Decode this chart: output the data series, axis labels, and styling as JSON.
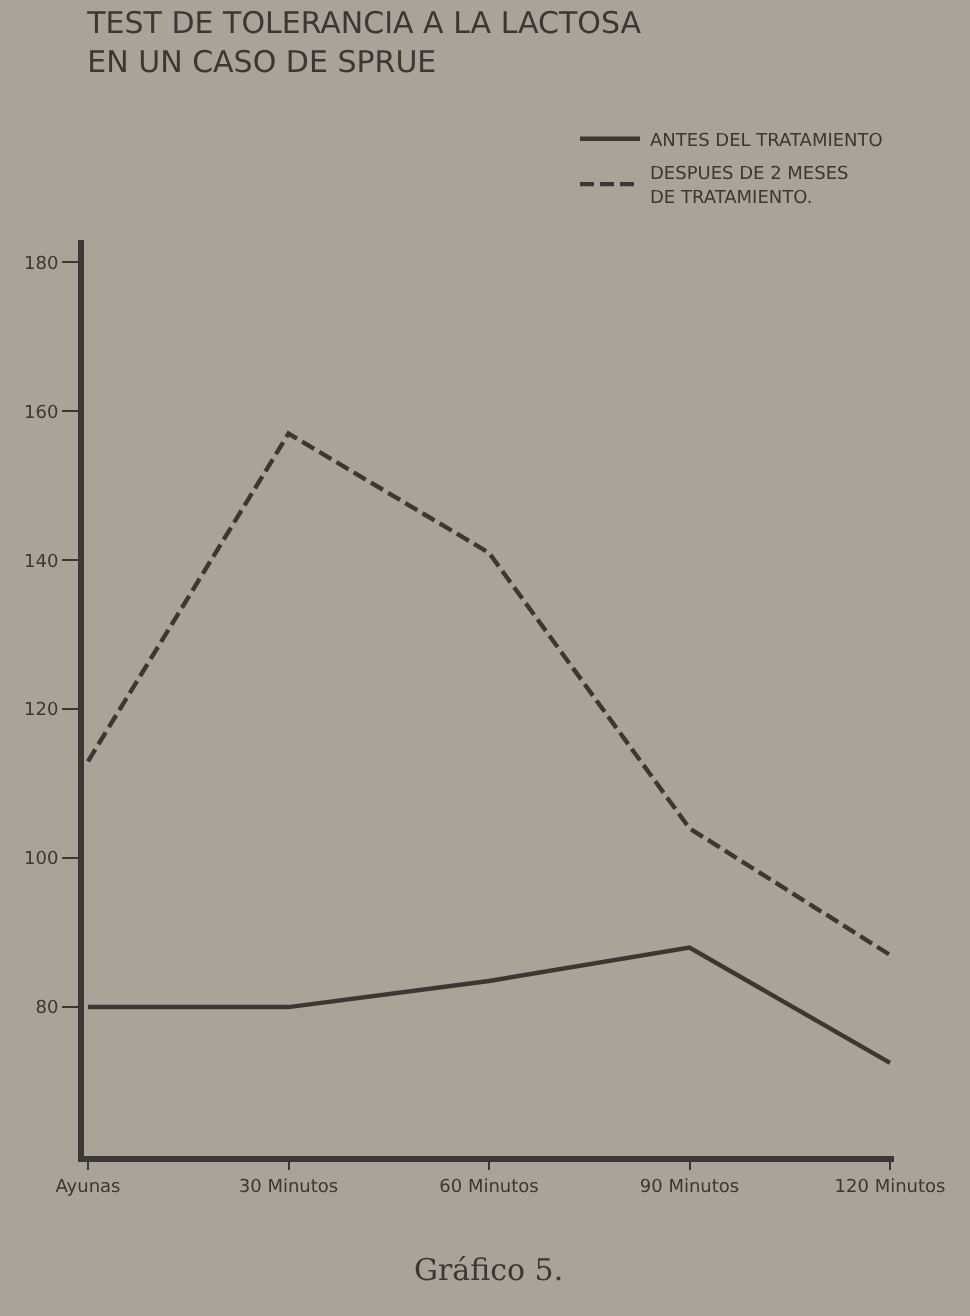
{
  "chart_data": {
    "type": "line",
    "title": "TEST DE TOLERANCIA A LA LACTOSA\nEN UN CASO DE SPRUE",
    "categories": [
      "Ayunas",
      "30 Minutos",
      "60 Minutos",
      "90 Minutos",
      "120 Minutos"
    ],
    "series": [
      {
        "name": "ANTES DEL TRATAMIENTO",
        "color": "#3b3733",
        "line_style": "solid",
        "values": [
          80,
          80,
          83.5,
          88,
          72.5
        ]
      },
      {
        "name": "DESPUES DE 2 MESES\nDE TRATAMIENTO.",
        "color": "#3b3733",
        "line_style": "dashed",
        "values": [
          113,
          157,
          141,
          104,
          87
        ]
      }
    ],
    "ylim": [
      60,
      183
    ],
    "yticks": [
      80,
      100,
      120,
      140,
      160,
      180
    ],
    "grid": false,
    "legend": "top right",
    "marker": "none",
    "annotations": [
      "Gráfico 5."
    ]
  }
}
